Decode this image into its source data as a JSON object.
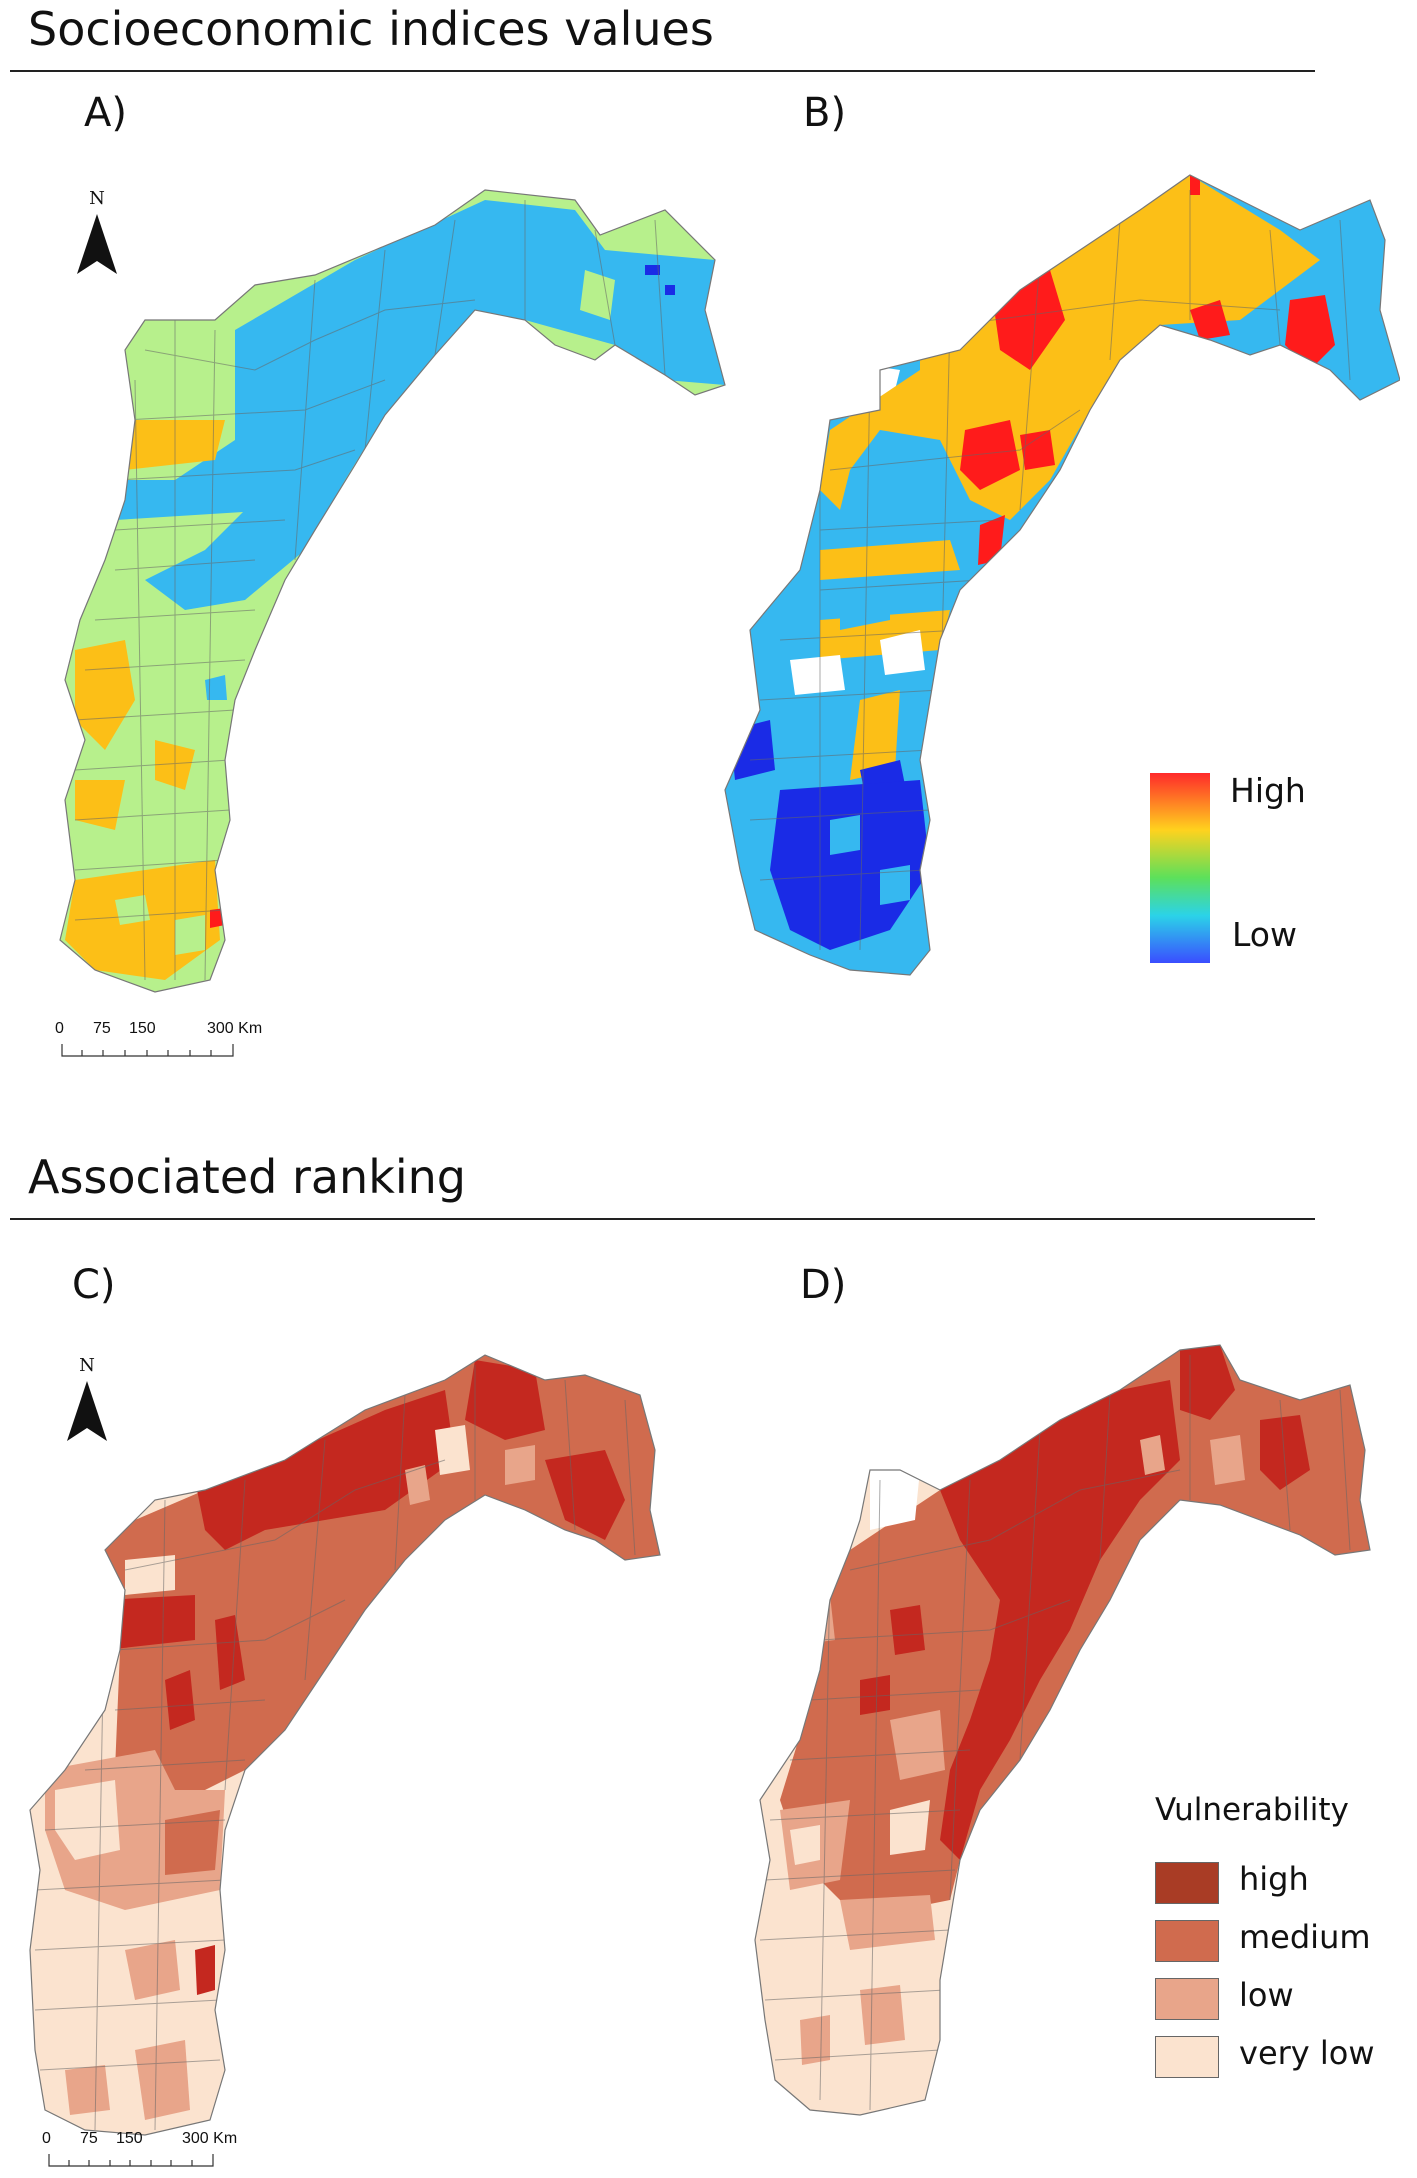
{
  "sections": {
    "top_title": "Socioeconomic indices values",
    "bottom_title": "Associated ranking"
  },
  "panels": {
    "a": "A)",
    "b": "B)",
    "c": "C)",
    "d": "D)"
  },
  "north_arrow": {
    "letter": "N",
    "icon": "north-arrow-icon"
  },
  "scale_bar": {
    "labels": [
      "0",
      "75",
      "150",
      "300 Km"
    ]
  },
  "gradient_legend": {
    "high": "High",
    "low": "Low"
  },
  "vulnerability_legend": {
    "title": "Vulnerability",
    "items": [
      {
        "label": "high",
        "color": "#a93c25"
      },
      {
        "label": "medium",
        "color": "#d06b4e"
      },
      {
        "label": "low",
        "color": "#e8a58a"
      },
      {
        "label": "very low",
        "color": "#fbe3cf"
      }
    ]
  },
  "colors": {
    "index_blue": "#36b8f0",
    "index_green": "#b7f08c",
    "index_orange": "#fcbf17",
    "index_red": "#ff1b1b",
    "index_darkblue": "#1a2be6",
    "rank_high": "#c4281f",
    "rank_medium": "#d06b4e",
    "rank_low": "#e8a58a",
    "rank_verylow": "#fbe3cf"
  }
}
